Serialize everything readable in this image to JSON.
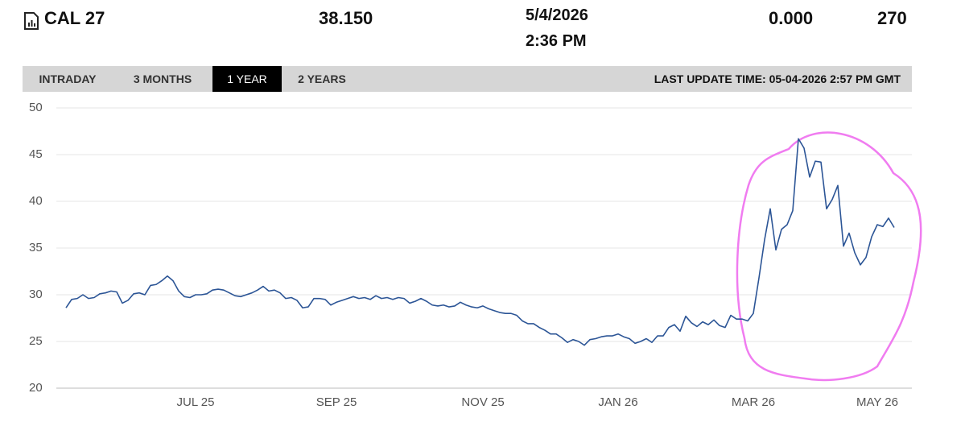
{
  "header": {
    "symbol": "CAL 27",
    "price": "38.150",
    "date": "5/4/2026",
    "time": "2:36 PM",
    "change": "0.000",
    "volume": "270"
  },
  "tabs": [
    "INTRADAY",
    "3 MONTHS",
    "1 YEAR",
    "2 YEARS"
  ],
  "last_update": "LAST UPDATE TIME: 05-04-2026 2:57 PM GMT",
  "chart_data": {
    "type": "line",
    "color": "#2c5596",
    "grid": true,
    "ylim": [
      20,
      50
    ],
    "yticks": [
      20,
      25,
      30,
      35,
      40,
      45,
      50
    ],
    "categories": [
      null,
      null,
      null,
      null,
      null,
      null,
      null,
      null,
      null,
      null,
      null,
      null,
      null,
      null,
      null,
      null,
      null,
      null,
      null,
      null,
      null,
      null,
      null,
      "JUL 25",
      null,
      null,
      null,
      null,
      null,
      null,
      null,
      null,
      null,
      null,
      null,
      null,
      null,
      null,
      null,
      null,
      null,
      null,
      null,
      null,
      null,
      null,
      null,
      null,
      "SEP 25",
      null,
      null,
      null,
      null,
      null,
      null,
      null,
      null,
      null,
      null,
      null,
      null,
      null,
      null,
      null,
      null,
      null,
      null,
      null,
      null,
      null,
      null,
      null,
      null,
      null,
      "NOV 25",
      null,
      null,
      null,
      null,
      null,
      null,
      null,
      null,
      null,
      null,
      null,
      null,
      null,
      null,
      null,
      null,
      null,
      null,
      null,
      null,
      null,
      null,
      null,
      "JAN 26",
      null,
      null,
      null,
      null,
      null,
      null,
      null,
      null,
      null,
      null,
      null,
      null,
      null,
      null,
      null,
      null,
      null,
      null,
      null,
      null,
      null,
      null,
      null,
      "MAR 26",
      null,
      null,
      null,
      null,
      null,
      null,
      null,
      null,
      null,
      null,
      null,
      null,
      null,
      null,
      null,
      null,
      null,
      null,
      null,
      null,
      null,
      "MAY 26",
      null,
      null,
      null
    ],
    "values": [
      28.6,
      29.5,
      29.6,
      30.0,
      29.6,
      29.7,
      30.1,
      30.2,
      30.4,
      30.3,
      29.1,
      29.4,
      30.1,
      30.2,
      30.0,
      31.0,
      31.1,
      31.5,
      32.0,
      31.5,
      30.4,
      29.8,
      29.7,
      30.0,
      30.0,
      30.1,
      30.5,
      30.6,
      30.5,
      30.2,
      29.9,
      29.8,
      30.0,
      30.2,
      30.5,
      30.9,
      30.4,
      30.5,
      30.2,
      29.6,
      29.7,
      29.4,
      28.6,
      28.7,
      29.6,
      29.6,
      29.5,
      28.9,
      29.2,
      29.4,
      29.6,
      29.8,
      29.6,
      29.7,
      29.5,
      29.9,
      29.6,
      29.7,
      29.5,
      29.7,
      29.6,
      29.1,
      29.3,
      29.6,
      29.3,
      28.9,
      28.8,
      28.9,
      28.7,
      28.8,
      29.2,
      28.9,
      28.7,
      28.6,
      28.8,
      28.5,
      28.3,
      28.1,
      28.0,
      28.0,
      27.8,
      27.2,
      26.9,
      26.9,
      26.5,
      26.2,
      25.8,
      25.8,
      25.4,
      24.9,
      25.2,
      25.0,
      24.6,
      25.2,
      25.3,
      25.5,
      25.6,
      25.6,
      25.8,
      25.5,
      25.3,
      24.8,
      25.0,
      25.3,
      24.9,
      25.6,
      25.6,
      26.5,
      26.8,
      26.1,
      27.7,
      27.0,
      26.6,
      27.1,
      26.8,
      27.3,
      26.7,
      26.5,
      27.8,
      27.4,
      27.4,
      27.2,
      28.0,
      31.8,
      35.9,
      39.2,
      34.8,
      37.0,
      37.5,
      39.0,
      46.7,
      45.7,
      42.6,
      44.3,
      44.2,
      39.2,
      40.2,
      41.7,
      35.2,
      36.6,
      34.5,
      33.2,
      34.0,
      36.2,
      37.5,
      37.3,
      38.2,
      37.2
    ]
  }
}
